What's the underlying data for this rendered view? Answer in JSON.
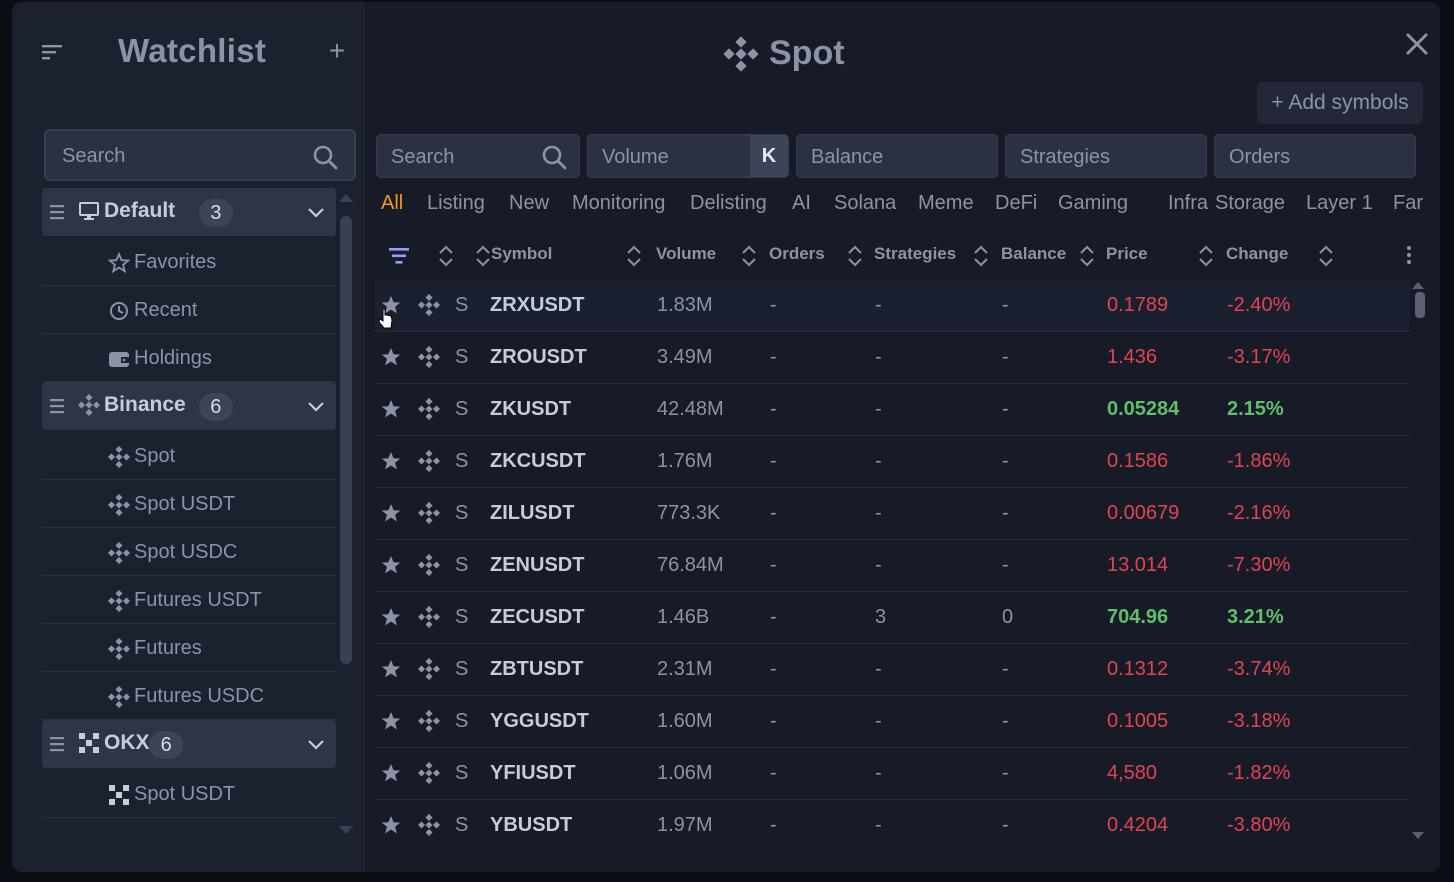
{
  "colors": {
    "accent": "#f39a1f",
    "positive": "#5fbf6a",
    "negative": "#e0454e",
    "text_muted": "#8c93a6"
  },
  "sidebar": {
    "title": "Watchlist",
    "add_icon": "plus-icon",
    "search_placeholder": "Search",
    "groups": [
      {
        "name": "Default",
        "count": "3",
        "icon": "monitor-icon",
        "items": [
          {
            "label": "Favorites",
            "icon": "star-outline-icon"
          },
          {
            "label": "Recent",
            "icon": "clock-icon"
          },
          {
            "label": "Holdings",
            "icon": "wallet-icon"
          }
        ]
      },
      {
        "name": "Binance",
        "count": "6",
        "icon": "binance-icon",
        "items": [
          {
            "label": "Spot",
            "icon": "binance-icon"
          },
          {
            "label": "Spot USDT",
            "icon": "binance-icon"
          },
          {
            "label": "Spot USDC",
            "icon": "binance-icon"
          },
          {
            "label": "Futures USDT",
            "icon": "binance-icon"
          },
          {
            "label": "Futures",
            "icon": "binance-icon"
          },
          {
            "label": "Futures USDC",
            "icon": "binance-icon"
          }
        ]
      },
      {
        "name": "OKX",
        "count": "6",
        "icon": "okx-icon",
        "items": [
          {
            "label": "Spot USDT",
            "icon": "okx-icon"
          }
        ]
      }
    ]
  },
  "main": {
    "title": "Spot",
    "add_symbols_label": "+ Add symbols",
    "filters": {
      "search_placeholder": "Search",
      "volume_placeholder": "Volume",
      "volume_unit": "K",
      "balance_placeholder": "Balance",
      "strategies_placeholder": "Strategies",
      "orders_placeholder": "Orders"
    },
    "tabs": [
      "All",
      "Listing",
      "New",
      "Monitoring",
      "Delisting",
      "AI",
      "Solana",
      "Meme",
      "DeFi",
      "Gaming",
      "Infra",
      "Storage",
      "Layer 1",
      "Far"
    ],
    "active_tab": "All",
    "columns": {
      "symbol": "Symbol",
      "volume": "Volume",
      "orders": "Orders",
      "strategies": "Strategies",
      "balance": "Balance",
      "price": "Price",
      "change": "Change"
    },
    "rows": [
      {
        "type": "S",
        "symbol": "ZRXUSDT",
        "volume": "1.83M",
        "orders": "-",
        "strategies": "-",
        "balance": "-",
        "price": "0.1789",
        "change": "-2.40%",
        "dir": "neg"
      },
      {
        "type": "S",
        "symbol": "ZROUSDT",
        "volume": "3.49M",
        "orders": "-",
        "strategies": "-",
        "balance": "-",
        "price": "1.436",
        "change": "-3.17%",
        "dir": "neg"
      },
      {
        "type": "S",
        "symbol": "ZKUSDT",
        "volume": "42.48M",
        "orders": "-",
        "strategies": "-",
        "balance": "-",
        "price": "0.05284",
        "change": "2.15%",
        "dir": "pos"
      },
      {
        "type": "S",
        "symbol": "ZKCUSDT",
        "volume": "1.76M",
        "orders": "-",
        "strategies": "-",
        "balance": "-",
        "price": "0.1586",
        "change": "-1.86%",
        "dir": "neg"
      },
      {
        "type": "S",
        "symbol": "ZILUSDT",
        "volume": "773.3K",
        "orders": "-",
        "strategies": "-",
        "balance": "-",
        "price": "0.00679",
        "change": "-2.16%",
        "dir": "neg"
      },
      {
        "type": "S",
        "symbol": "ZENUSDT",
        "volume": "76.84M",
        "orders": "-",
        "strategies": "-",
        "balance": "-",
        "price": "13.014",
        "change": "-7.30%",
        "dir": "neg"
      },
      {
        "type": "S",
        "symbol": "ZECUSDT",
        "volume": "1.46B",
        "orders": "-",
        "strategies": "3",
        "balance": "0",
        "price": "704.96",
        "change": "3.21%",
        "dir": "pos"
      },
      {
        "type": "S",
        "symbol": "ZBTUSDT",
        "volume": "2.31M",
        "orders": "-",
        "strategies": "-",
        "balance": "-",
        "price": "0.1312",
        "change": "-3.74%",
        "dir": "neg"
      },
      {
        "type": "S",
        "symbol": "YGGUSDT",
        "volume": "1.60M",
        "orders": "-",
        "strategies": "-",
        "balance": "-",
        "price": "0.1005",
        "change": "-3.18%",
        "dir": "neg"
      },
      {
        "type": "S",
        "symbol": "YFIUSDT",
        "volume": "1.06M",
        "orders": "-",
        "strategies": "-",
        "balance": "-",
        "price": "4,580",
        "change": "-1.82%",
        "dir": "neg"
      },
      {
        "type": "S",
        "symbol": "YBUSDT",
        "volume": "1.97M",
        "orders": "-",
        "strategies": "-",
        "balance": "-",
        "price": "0.4204",
        "change": "-3.80%",
        "dir": "neg"
      }
    ]
  }
}
